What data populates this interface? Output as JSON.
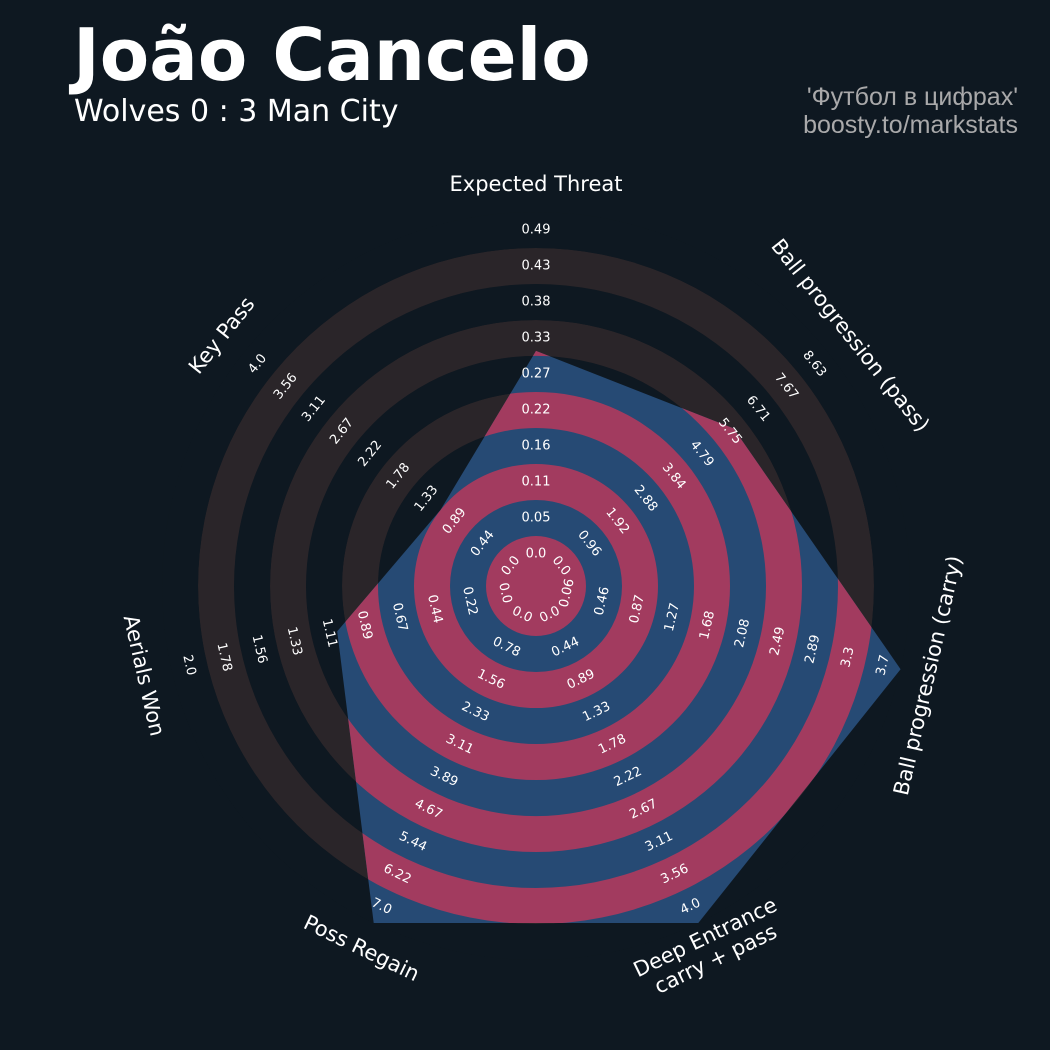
{
  "header": {
    "title": "João Cancelo",
    "subtitle": "Wolves 0 : 3 Man City",
    "credit_line1": "'Футбол в цифрах'",
    "credit_line2": "boosty.to/markstats"
  },
  "colors": {
    "background": "#0e1821",
    "ring_outer": "#2a2529",
    "ring_inner": "#a23b5f",
    "polygon": "#264a74",
    "label": "#ffffff",
    "credit": "#a9a9aa"
  },
  "chart_data": {
    "type": "radar",
    "title": "João Cancelo",
    "subtitle": "Wolves 0 : 3 Man City",
    "parameters": [
      {
        "name": "Expected Threat",
        "display": [
          "Expected Threat"
        ],
        "value": 0.28,
        "ticks": [
          "0.0",
          "0.05",
          "0.11",
          "0.16",
          "0.22",
          "0.27",
          "0.33",
          "0.38",
          "0.43",
          "0.49"
        ]
      },
      {
        "name": "Ball progression (pass)",
        "display": [
          "Ball progression (pass)"
        ],
        "value": 5.4,
        "ticks": [
          "0.0",
          "0.96",
          "1.92",
          "2.88",
          "3.84",
          "4.79",
          "5.75",
          "6.71",
          "7.67",
          "8.63"
        ]
      },
      {
        "name": "Ball progression (carry)",
        "display": [
          "Ball progression (carry)"
        ],
        "value": 3.7,
        "ticks": [
          "0.06",
          "0.46",
          "0.87",
          "1.27",
          "1.68",
          "2.08",
          "2.49",
          "2.89",
          "3.3",
          "3.7"
        ]
      },
      {
        "name": "Deep Entrance carry + pass",
        "display": [
          "Deep Entrance",
          "carry + pass"
        ],
        "value": 4.0,
        "ticks": [
          "0.0",
          "0.44",
          "0.89",
          "1.33",
          "1.78",
          "2.22",
          "2.67",
          "3.11",
          "3.56",
          "4.0"
        ]
      },
      {
        "name": "Poss Regain",
        "display": [
          "Poss Regain"
        ],
        "value": 7.0,
        "ticks": [
          "0.0",
          "0.78",
          "1.56",
          "2.33",
          "3.11",
          "3.89",
          "4.67",
          "5.44",
          "6.22",
          "7.0"
        ]
      },
      {
        "name": "Aerials Won",
        "display": [
          "Aerials Won"
        ],
        "value": 0.95,
        "ticks": [
          "0.0",
          "0.22",
          "0.44",
          "0.67",
          "0.89",
          "1.11",
          "1.33",
          "1.56",
          "1.78",
          "2.0"
        ]
      },
      {
        "name": "Key Pass",
        "display": [
          "Key Pass"
        ],
        "value": 0.89,
        "ticks": [
          "0.0",
          "0.44",
          "0.89",
          "1.33",
          "1.78",
          "2.22",
          "2.67",
          "3.11",
          "3.56",
          "4.0"
        ]
      }
    ],
    "grid": true,
    "legend": "none"
  }
}
